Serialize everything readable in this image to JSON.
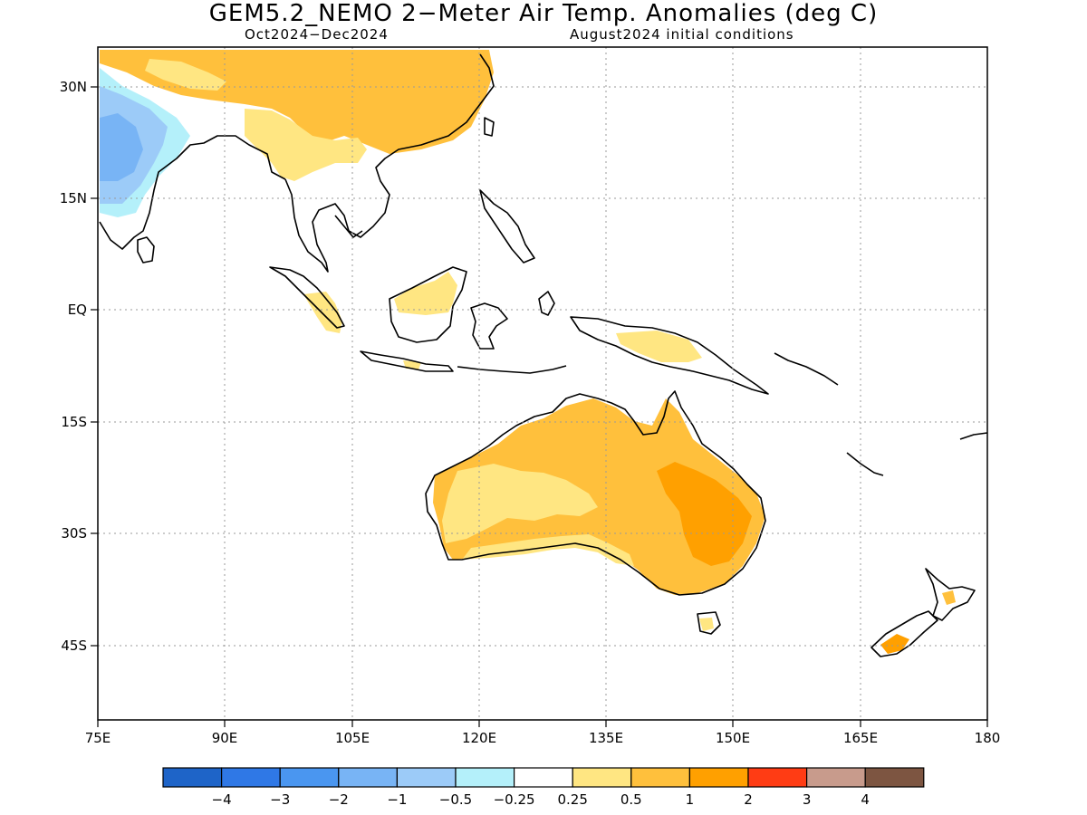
{
  "title": "GEM5.2_NEMO 2−Meter Air Temp. Anomalies (deg C)",
  "subtitle_left": "Oct2024−Dec2024",
  "subtitle_right": "August2024 initial conditions",
  "lat_ticks": [
    "30N",
    "15N",
    "EQ",
    "15S",
    "30S",
    "45S"
  ],
  "lon_ticks": [
    "75E",
    "90E",
    "105E",
    "120E",
    "135E",
    "150E",
    "165E",
    "180"
  ],
  "legend": {
    "colors": [
      "#1e64c8",
      "#2f78e6",
      "#4a96f0",
      "#78b4f5",
      "#9ccbf8",
      "#b4f0fa",
      "#ffffff",
      "#ffe682",
      "#ffc03c",
      "#ffa000",
      "#ff3c14",
      "#c89b8c",
      "#7d5541"
    ],
    "labels": [
      "−4",
      "−3",
      "−2",
      "−1",
      "−0.5",
      "−0.25",
      "0.25",
      "0.5",
      "1",
      "2",
      "3",
      "4"
    ]
  },
  "colors": {
    "warm_05_1": "#ffc03c",
    "warm_1_2": "#ffa000",
    "warm_025_05": "#ffe682",
    "cold_1_2": "#78b4f5",
    "cold_05_1": "#9ccbf8",
    "cold_025_05": "#b4f0fa",
    "coast": "#000000",
    "grid": "#9a9a9a"
  }
}
